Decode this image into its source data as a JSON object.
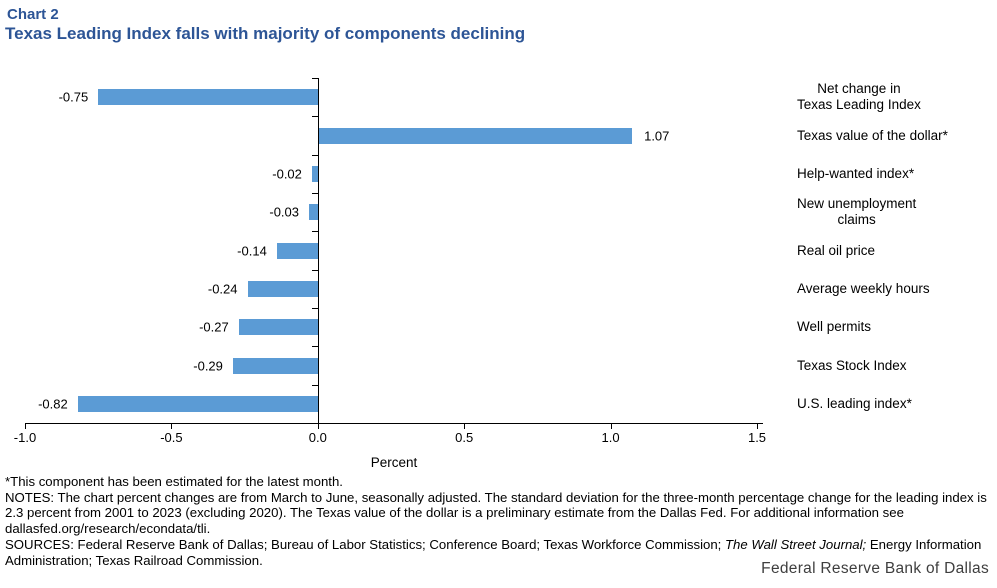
{
  "header": {
    "chart_label": "Chart 2",
    "title": "Texas Leading Index falls with majority of components declining"
  },
  "chart_data": {
    "type": "bar",
    "orientation": "horizontal",
    "categories": [
      "Net change in\nTexas Leading Index",
      "Texas value of the dollar*",
      "Help-wanted index*",
      "New unemployment\nclaims",
      "Real oil price",
      "Average weekly hours",
      "Well permits",
      "Texas Stock Index",
      "U.S. leading index*"
    ],
    "values": [
      -0.75,
      1.07,
      -0.02,
      -0.03,
      -0.14,
      -0.24,
      -0.27,
      -0.29,
      -0.82
    ],
    "value_labels": [
      "-0.75",
      "1.07",
      "-0.02",
      "-0.03",
      "-0.14",
      "-0.24",
      "-0.27",
      "-0.29",
      "-0.82"
    ],
    "xlabel": "Percent",
    "xlim": [
      -1.0,
      1.5
    ],
    "x_ticks": [
      -1.0,
      -0.5,
      0.0,
      0.5,
      1.0,
      1.5
    ],
    "x_tick_labels": [
      "-1.0",
      "-0.5",
      "0.0",
      "0.5",
      "1.0",
      "1.5"
    ],
    "grid": false,
    "legend": "none",
    "bar_color": "#5B9BD5"
  },
  "footnotes": {
    "asterisk": "*This component has been estimated for the latest month.",
    "notes": "NOTES: The chart percent changes are from March to June, seasonally adjusted. The standard deviation for the three-month percentage change for the leading index is 2.3 percent from 2001 to 2023 (excluding 2020). The Texas value of the dollar is a preliminary estimate from the Dallas Fed. For additional information see dallasfed.org/research/econdata/tli.",
    "sources_prefix": "SOURCES: Federal Reserve Bank of Dallas; Bureau of Labor Statistics; Conference Board; Texas Workforce Commission; ",
    "sources_italic": "The Wall Street Journal;",
    "sources_suffix": " Energy Information Administration; Texas Railroad Commission."
  },
  "branding": {
    "org": "Federal Reserve Bank of Dallas"
  },
  "colors": {
    "title_blue": "#2D5596",
    "bar_blue": "#5B9BD5",
    "axis_black": "#000000",
    "branding_gray": "#3E3E3E"
  }
}
